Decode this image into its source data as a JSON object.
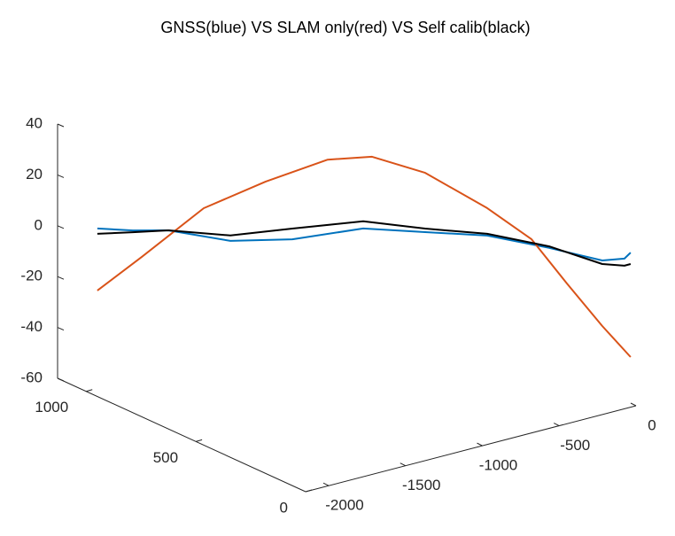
{
  "chart_data": {
    "type": "line3d",
    "title": "GNSS(blue) VS SLAM only(red) VS Self calib(black)",
    "xlim": [
      -2150,
      0
    ],
    "xticks": [
      -2000,
      -1500,
      -1000,
      -500,
      0
    ],
    "ylim": [
      0,
      1130
    ],
    "yticks": [
      0,
      500,
      1000
    ],
    "zlim": [
      -60,
      40
    ],
    "zticks": [
      -60,
      -40,
      -20,
      0,
      20,
      40
    ],
    "grid": false,
    "series": [
      {
        "color": "#0072BD",
        "x": [
          -2148,
          -2007,
          -1866,
          -1621,
          -1375,
          -1094,
          -849,
          -603,
          -358,
          -148,
          -60,
          -35
        ],
        "y": [
          950,
          887,
          824,
          713,
          603,
          477,
          366,
          256,
          145,
          50,
          11,
          0
        ],
        "z": [
          6.0,
          5.5,
          5.8,
          2.2,
          3.3,
          8.1,
          7.2,
          6.3,
          2.0,
          -2.5,
          -1.6,
          0.8
        ]
      },
      {
        "color": "#D95319",
        "x": [
          -2148,
          -1972,
          -1726,
          -1481,
          -1235,
          -1059,
          -849,
          -603,
          -427,
          -287,
          -148,
          -35
        ],
        "y": [
          950,
          871,
          761,
          650,
          540,
          461,
          366,
          256,
          177,
          114,
          50,
          0
        ],
        "z": [
          -18.4,
          -4.8,
          14.8,
          25.8,
          34.9,
          36.4,
          30.5,
          17.1,
          5.2,
          -11.9,
          -28.3,
          -40.3
        ]
      },
      {
        "color": "#000000",
        "x": [
          -2148,
          -2007,
          -1866,
          -1621,
          -1375,
          -1094,
          -849,
          -603,
          -358,
          -148,
          -60,
          -35
        ],
        "y": [
          950,
          887,
          824,
          713,
          603,
          477,
          366,
          256,
          145,
          50,
          11,
          0
        ],
        "z": [
          3.9,
          4.8,
          5.8,
          4.3,
          7.5,
          10.9,
          8.6,
          7.0,
          2.6,
          -3.9,
          -4.4,
          -3.7
        ]
      }
    ]
  }
}
